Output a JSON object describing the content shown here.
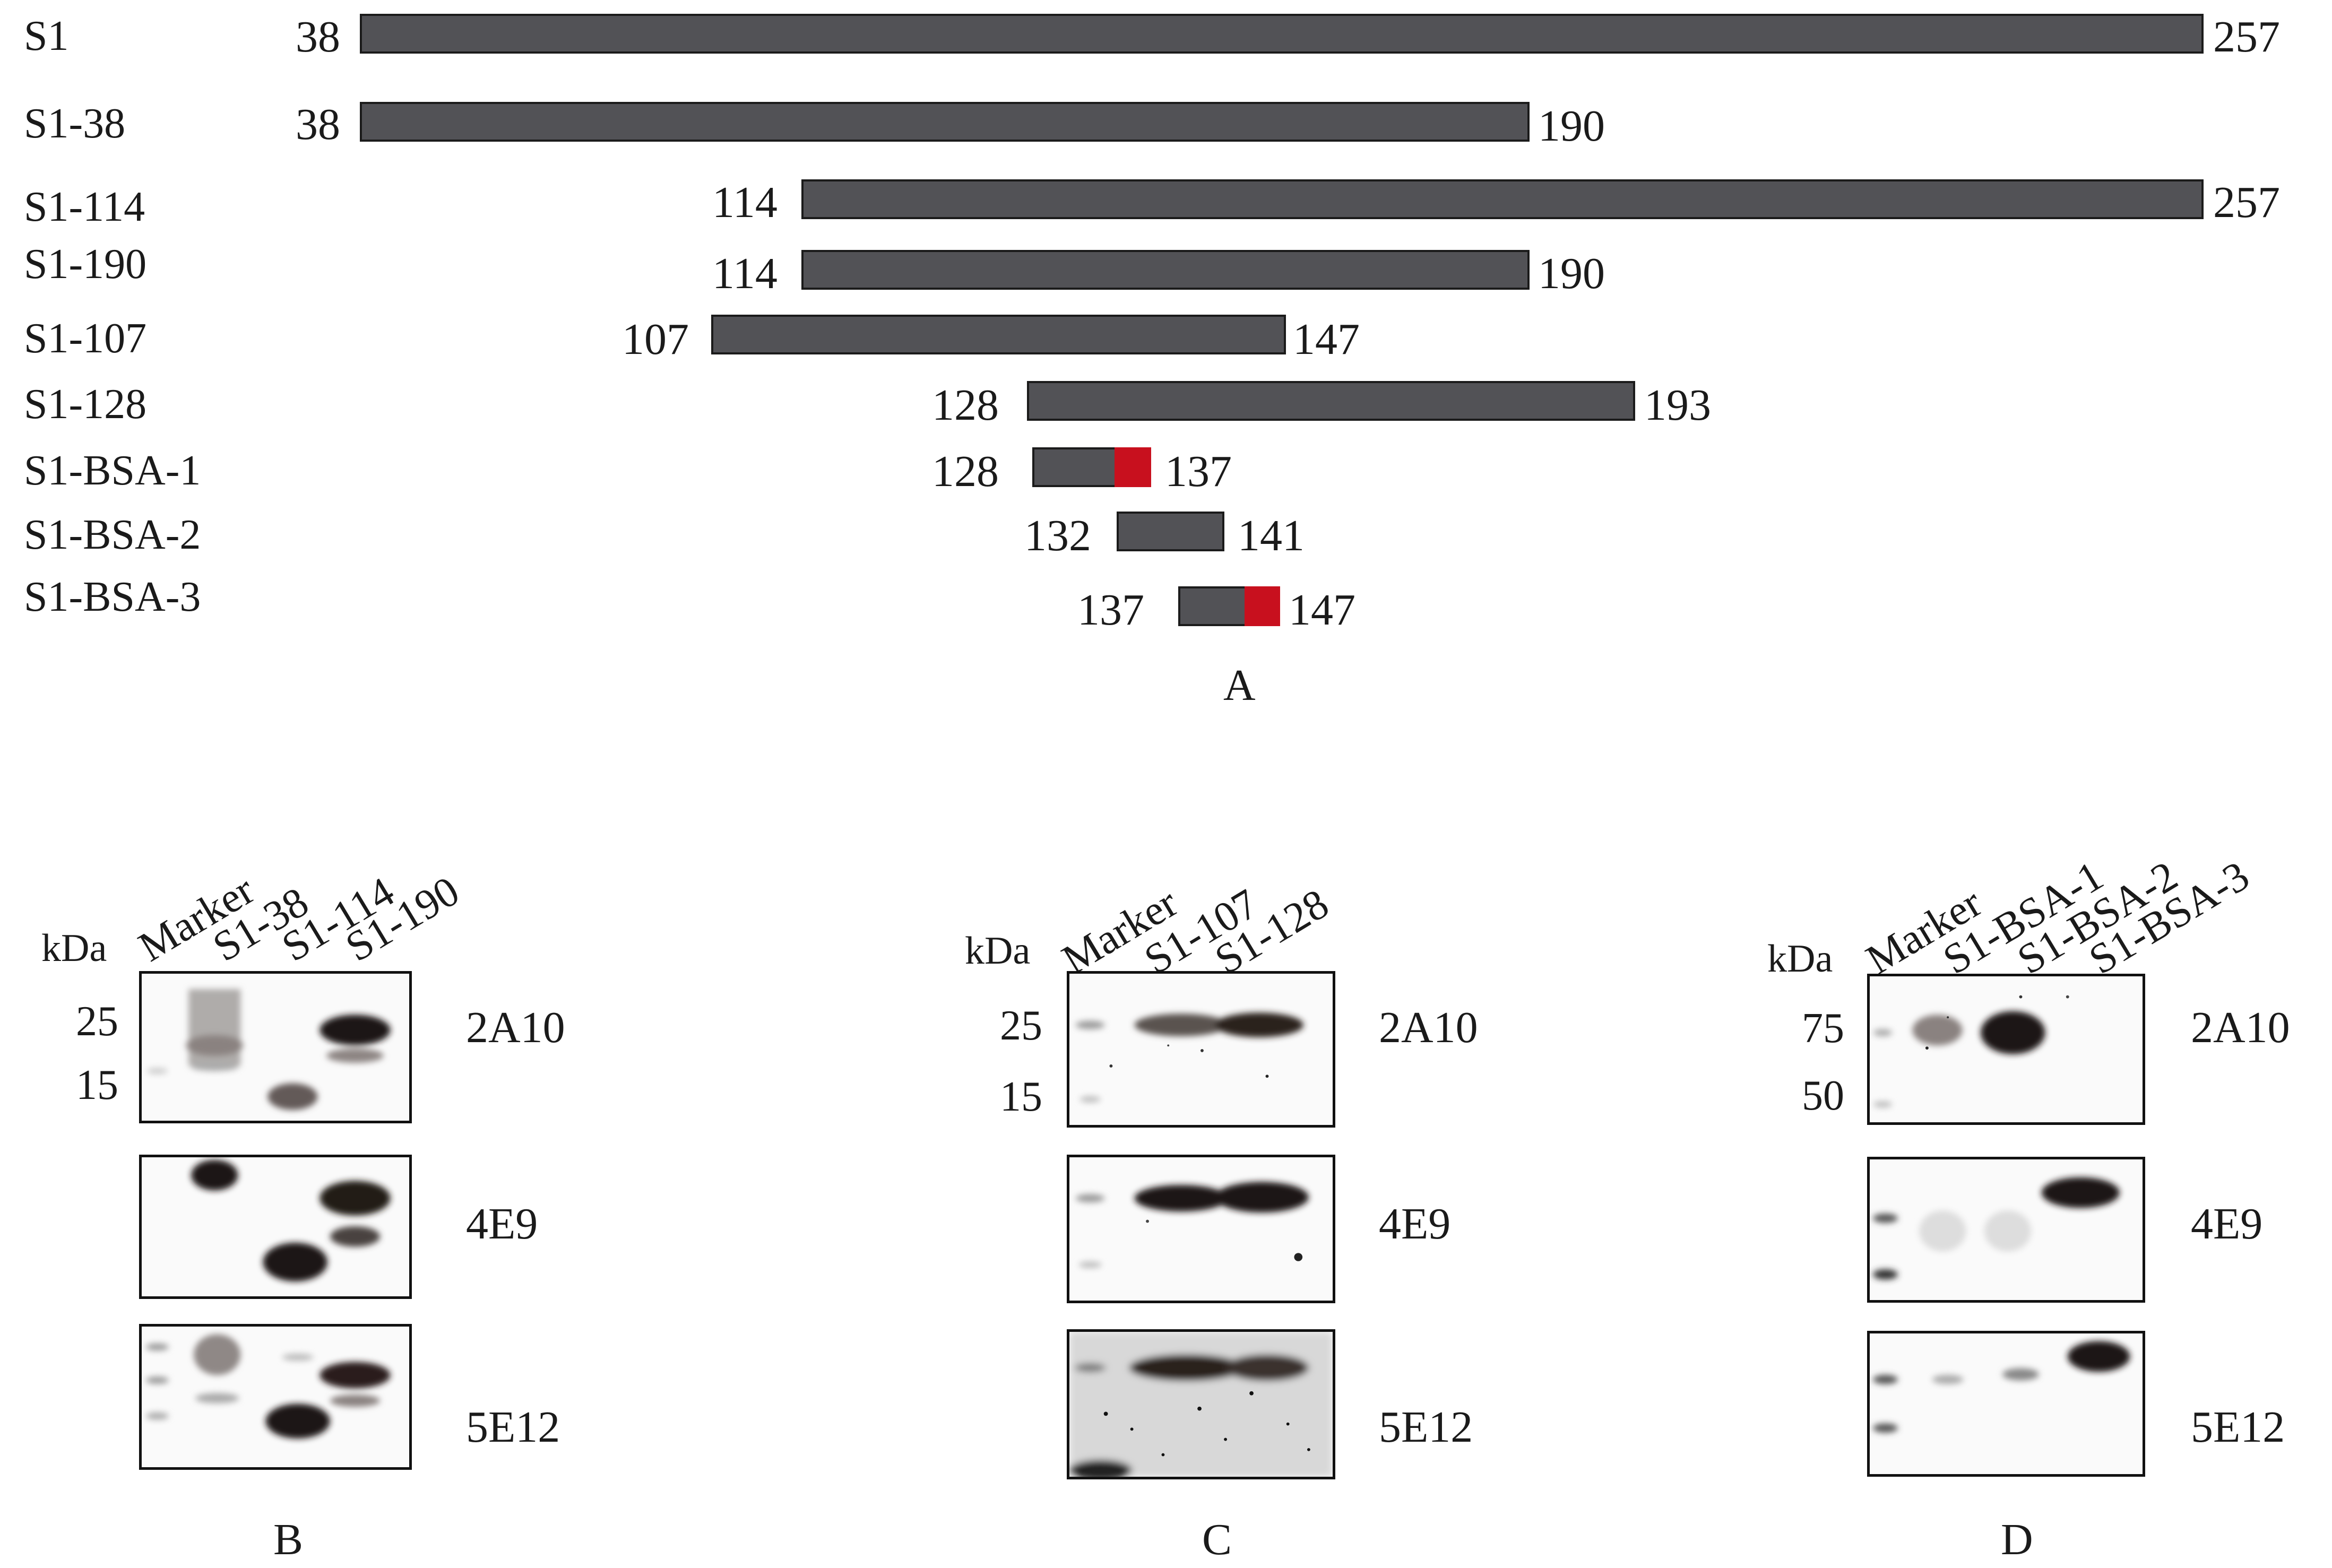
{
  "panel_a": {
    "letter": "A",
    "constructs": [
      {
        "name": "S1",
        "start": "38",
        "end": "257"
      },
      {
        "name": "S1-38",
        "start": "38",
        "end": "190"
      },
      {
        "name": "S1-114",
        "start": "114",
        "end": "257"
      },
      {
        "name": "S1-190",
        "start": "114",
        "end": "190"
      },
      {
        "name": "S1-107",
        "start": "107",
        "end": "147"
      },
      {
        "name": "S1-128",
        "start": "128",
        "end": "193"
      },
      {
        "name": "S1-BSA-1",
        "start": "128",
        "end": "137"
      },
      {
        "name": "S1-BSA-2",
        "start": "132",
        "end": "141"
      },
      {
        "name": "S1-BSA-3",
        "start": "137",
        "end": "147"
      }
    ]
  },
  "panel_b": {
    "letter": "B",
    "kda": "kDa",
    "lanes": [
      "Marker",
      "S1-38",
      "S1-114",
      "S1-190"
    ],
    "markers": [
      "25",
      "15"
    ],
    "antibodies": [
      "2A10",
      "4E9",
      "5E12"
    ]
  },
  "panel_c": {
    "letter": "C",
    "kda": "kDa",
    "lanes": [
      "Marker",
      "S1-107",
      "S1-128"
    ],
    "markers": [
      "25",
      "15"
    ],
    "antibodies": [
      "2A10",
      "4E9",
      "5E12"
    ]
  },
  "panel_d": {
    "letter": "D",
    "kda": "kDa",
    "lanes": [
      "Marker",
      "S1-BSA-1",
      "S1-BSA-2",
      "S1-BSA-3"
    ],
    "markers": [
      "75",
      "50"
    ],
    "antibodies": [
      "2A10",
      "4E9",
      "5E12"
    ]
  },
  "colors": {
    "bar": "#525256",
    "highlight": "#c8101e",
    "band": "#1e1513"
  }
}
